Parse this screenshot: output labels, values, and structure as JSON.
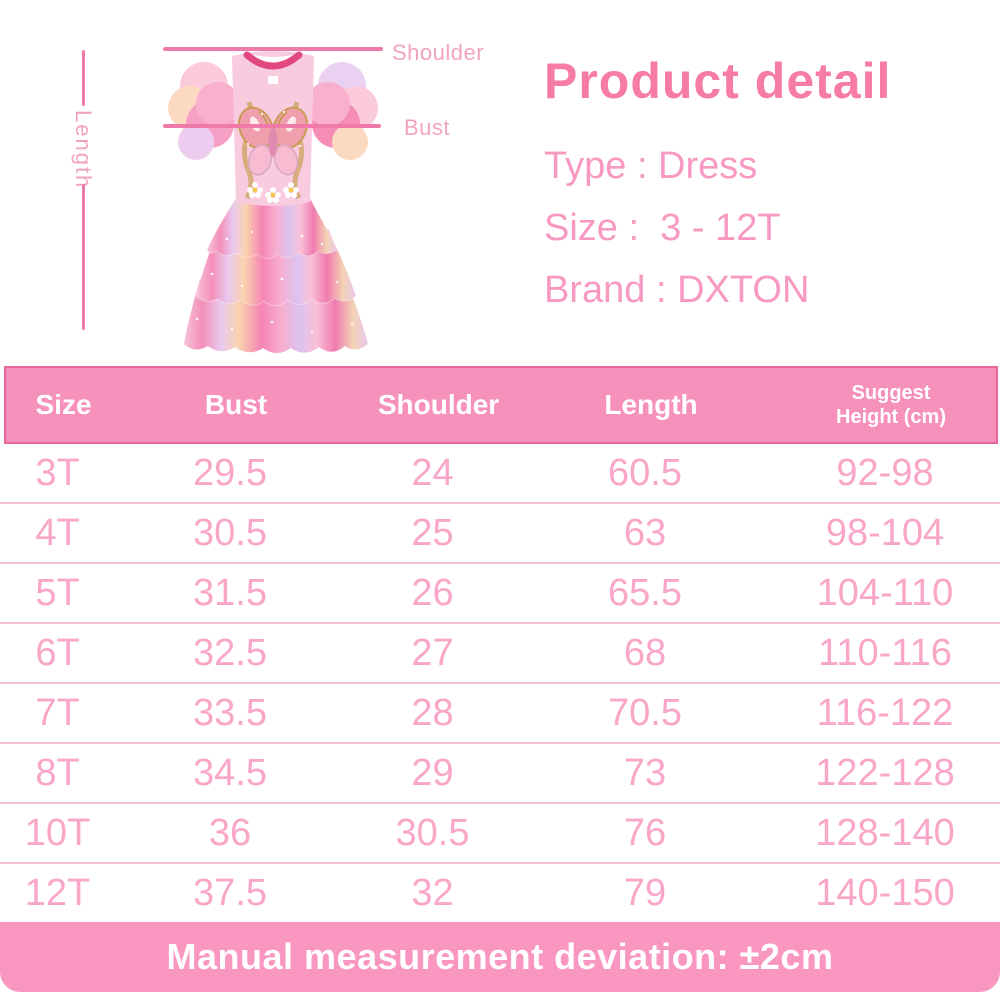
{
  "figure": {
    "shoulder_label": "Shoulder",
    "bust_label": "Bust",
    "length_label": "Length",
    "dress": "pink-butterfly-tiered-tulle-dress"
  },
  "product_detail": {
    "title": "Product detail",
    "type_line": "Type : Dress",
    "size_line": "Size :  3 - 12T",
    "brand_line": "Brand : DXTON"
  },
  "size_chart": {
    "columns": [
      "Size",
      "Bust",
      "Shoulder",
      "Length",
      "Suggest Height (cm)"
    ],
    "rows": [
      [
        "3T",
        "29.5",
        "24",
        "60.5",
        "92-98"
      ],
      [
        "4T",
        "30.5",
        "25",
        "63",
        "98-104"
      ],
      [
        "5T",
        "31.5",
        "26",
        "65.5",
        "104-110"
      ],
      [
        "6T",
        "32.5",
        "27",
        "68",
        "110-116"
      ],
      [
        "7T",
        "33.5",
        "28",
        "70.5",
        "116-122"
      ],
      [
        "8T",
        "34.5",
        "29",
        "73",
        "122-128"
      ],
      [
        "10T",
        "36",
        "30.5",
        "76",
        "128-140"
      ],
      [
        "12T",
        "37.5",
        "32",
        "79",
        "140-150"
      ]
    ]
  },
  "footer": {
    "note": "Manual measurement deviation: ±2cm"
  },
  "colors": {
    "line": "#ef7aa9",
    "label": "#f2a3c2",
    "title": "#f67ca4",
    "text": "#f899c1",
    "header_bg": "#f591bb",
    "header_border": "#e8689e",
    "row_text": "#f9a6c8",
    "row_sep": "#f5c0da",
    "footer_bg": "#f997c0"
  }
}
